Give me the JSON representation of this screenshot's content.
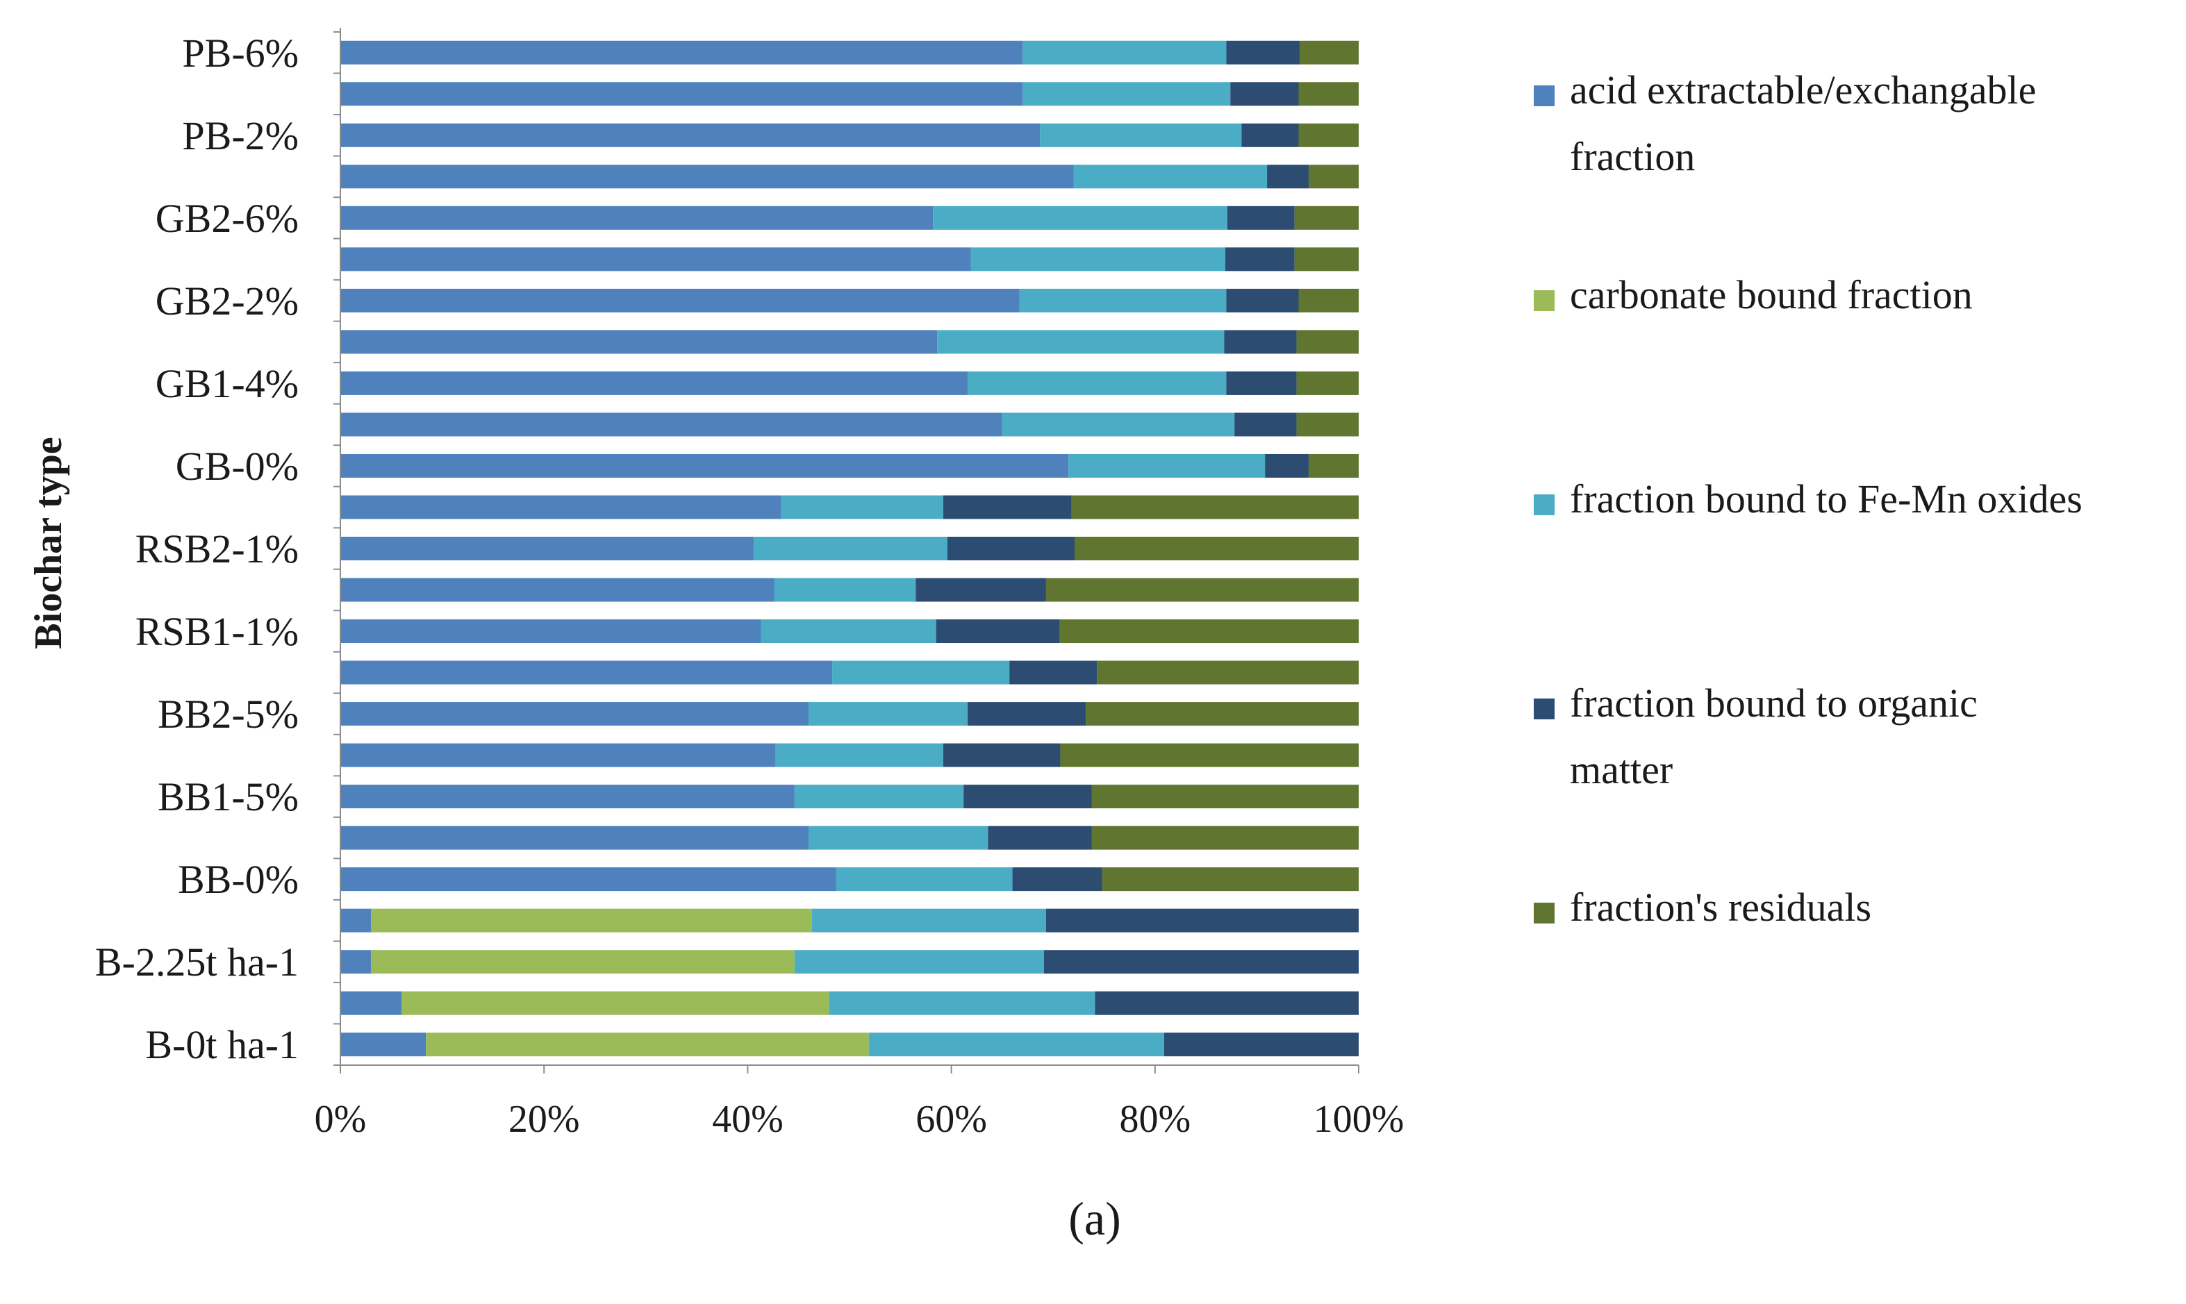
{
  "chart_data": {
    "type": "bar",
    "orientation": "horizontal",
    "stacked": "percent",
    "xlabel": "",
    "ylabel": "Biochar type",
    "xlim": [
      0,
      100
    ],
    "x_ticks": [
      "0%",
      "20%",
      "40%",
      "60%",
      "80%",
      "100%"
    ],
    "grid": false,
    "legend_position": "right",
    "caption": "(a)",
    "categories": [
      "PB-6%",
      "",
      "PB-2%",
      "",
      "GB2-6%",
      "",
      "GB2-2%",
      "",
      "GB1-4%",
      "",
      "GB-0%",
      "",
      "RSB2-1%",
      "",
      "RSB1-1%",
      "",
      "BB2-5%",
      "",
      "BB1-5%",
      "",
      "BB-0%",
      "",
      "B-2.25t ha-1",
      "",
      "B-0t ha-1"
    ],
    "series": [
      {
        "name": "acid extractable/exchangable fraction",
        "color": "#4f81bd",
        "values": [
          67,
          67,
          68.7,
          72,
          58.2,
          61.9,
          66.7,
          58.6,
          61.6,
          65,
          71.5,
          43.3,
          40.6,
          42.6,
          41.3,
          48.3,
          46,
          42.7,
          44.6,
          46,
          48.7,
          3,
          3,
          6,
          8.4
        ]
      },
      {
        "name": "carbonate bound fraction",
        "color": "#9bbb59",
        "values": [
          0,
          0,
          0,
          0,
          0,
          0,
          0,
          0,
          0,
          0,
          0,
          0,
          0,
          0,
          0,
          0,
          0,
          0,
          0,
          0,
          0,
          43.3,
          41.6,
          42,
          43.5
        ]
      },
      {
        "name": "fraction bound to Fe-Mn oxides",
        "color": "#4bacc6",
        "values": [
          20,
          20.4,
          19.8,
          19,
          28.9,
          25,
          20.3,
          28.2,
          25.4,
          22.8,
          19.3,
          15.9,
          19,
          13.9,
          17.2,
          17.4,
          15.6,
          16.5,
          16.6,
          17.6,
          17.3,
          23,
          24.5,
          26.1,
          29
        ]
      },
      {
        "name": "fraction bound to organic matter",
        "color": "#2d4c71",
        "values": [
          7.2,
          6.7,
          5.6,
          4.1,
          6.6,
          6.8,
          7.1,
          7.1,
          6.9,
          6.1,
          4.3,
          12.6,
          12.5,
          12.8,
          12.1,
          8.6,
          11.6,
          11.5,
          12.6,
          10.2,
          8.8,
          30.7,
          30.9,
          25.9,
          19.1
        ]
      },
      {
        "name": "fraction's residuals",
        "color": "#5f7530",
        "values": [
          5.8,
          5.9,
          5.9,
          4.9,
          6.3,
          6.3,
          5.9,
          6.1,
          6.1,
          6.1,
          4.9,
          28.2,
          27.9,
          30.7,
          29.4,
          25.7,
          26.8,
          29.3,
          26.2,
          26.2,
          25.2,
          0,
          0,
          0,
          0
        ]
      }
    ]
  }
}
